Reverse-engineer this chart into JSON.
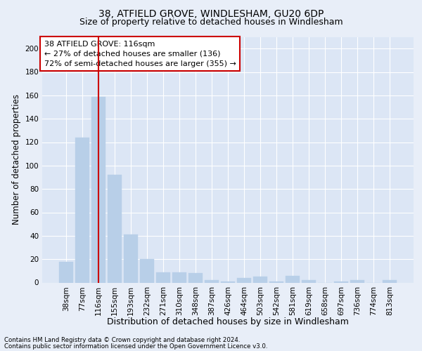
{
  "title": "38, ATFIELD GROVE, WINDLESHAM, GU20 6DP",
  "subtitle": "Size of property relative to detached houses in Windlesham",
  "xlabel": "Distribution of detached houses by size in Windlesham",
  "ylabel": "Number of detached properties",
  "footnote1": "Contains HM Land Registry data © Crown copyright and database right 2024.",
  "footnote2": "Contains public sector information licensed under the Open Government Licence v3.0.",
  "bar_labels": [
    "38sqm",
    "77sqm",
    "116sqm",
    "155sqm",
    "193sqm",
    "232sqm",
    "271sqm",
    "310sqm",
    "348sqm",
    "387sqm",
    "426sqm",
    "464sqm",
    "503sqm",
    "542sqm",
    "581sqm",
    "619sqm",
    "658sqm",
    "697sqm",
    "736sqm",
    "774sqm",
    "813sqm"
  ],
  "bar_values": [
    18,
    124,
    159,
    92,
    41,
    20,
    9,
    9,
    8,
    2,
    1,
    4,
    5,
    1,
    6,
    2,
    0,
    1,
    2,
    0,
    2
  ],
  "bar_color": "#b8cfe8",
  "highlight_index": 2,
  "highlight_color": "#cc0000",
  "ylim": [
    0,
    210
  ],
  "yticks": [
    0,
    20,
    40,
    60,
    80,
    100,
    120,
    140,
    160,
    180,
    200
  ],
  "annotation_title": "38 ATFIELD GROVE: 116sqm",
  "annotation_line1": "← 27% of detached houses are smaller (136)",
  "annotation_line2": "72% of semi-detached houses are larger (355) →",
  "annotation_box_color": "#cc0000",
  "bg_color": "#dce6f5",
  "fig_bg_color": "#e8eef8",
  "title_fontsize": 10,
  "subtitle_fontsize": 9,
  "tick_fontsize": 7.5,
  "ylabel_fontsize": 8.5,
  "xlabel_fontsize": 9,
  "annotation_fontsize": 8
}
